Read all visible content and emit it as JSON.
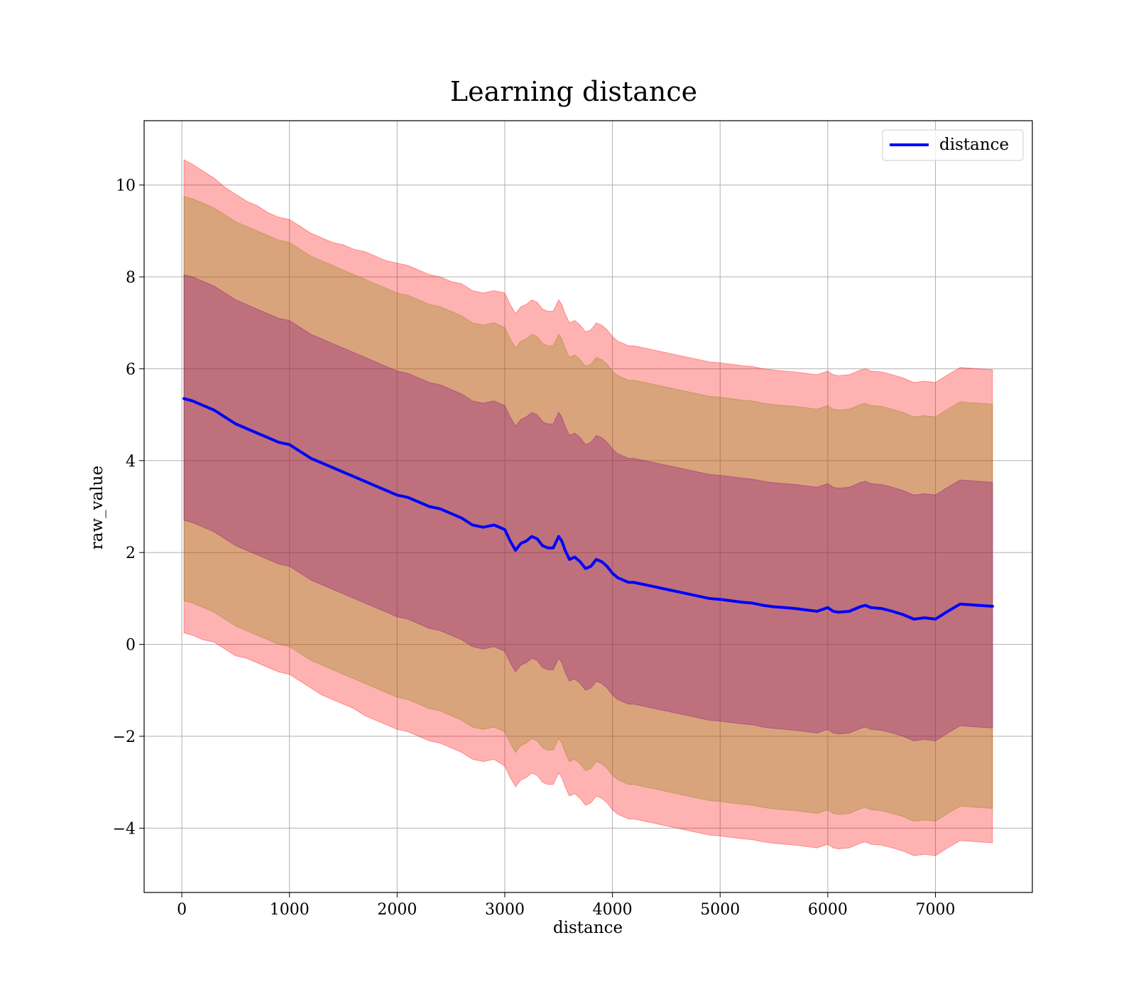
{
  "figure": {
    "background": "#ffffff"
  },
  "chart_data": {
    "type": "line",
    "title": "Learning distance",
    "xlabel": "distance",
    "ylabel": "raw_value",
    "xlim": [
      -350,
      7900
    ],
    "ylim": [
      -5.4,
      11.4
    ],
    "x_ticks": [
      0,
      1000,
      2000,
      3000,
      4000,
      5000,
      6000,
      7000
    ],
    "x_tick_labels": [
      "0",
      "1000",
      "2000",
      "3000",
      "4000",
      "5000",
      "6000",
      "7000"
    ],
    "y_ticks": [
      -4,
      -2,
      0,
      2,
      4,
      6,
      8,
      10
    ],
    "y_tick_labels": [
      "−4",
      "−2",
      "0",
      "2",
      "4",
      "6",
      "8",
      "10"
    ],
    "grid": true,
    "legend": {
      "position": "top-right",
      "entries": [
        "distance"
      ]
    },
    "series": [
      {
        "name": "distance",
        "color": "#0000ff",
        "x": [
          20,
          100,
          200,
          300,
          400,
          500,
          600,
          700,
          800,
          900,
          1000,
          1100,
          1200,
          1300,
          1400,
          1500,
          1600,
          1700,
          1800,
          1900,
          2000,
          2100,
          2200,
          2300,
          2400,
          2500,
          2600,
          2700,
          2800,
          2900,
          3000,
          3050,
          3100,
          3150,
          3200,
          3250,
          3300,
          3350,
          3400,
          3450,
          3500,
          3530,
          3560,
          3600,
          3650,
          3700,
          3750,
          3800,
          3850,
          3900,
          3950,
          4000,
          4050,
          4100,
          4150,
          4200,
          4300,
          4400,
          4500,
          4600,
          4700,
          4800,
          4900,
          5000,
          5100,
          5200,
          5300,
          5400,
          5500,
          5600,
          5700,
          5800,
          5900,
          6000,
          6050,
          6100,
          6200,
          6300,
          6350,
          6400,
          6500,
          6600,
          6700,
          6800,
          6900,
          7000,
          7100,
          7230,
          7400,
          7530
        ],
        "y": [
          5.35,
          5.3,
          5.2,
          5.1,
          4.95,
          4.8,
          4.7,
          4.6,
          4.5,
          4.4,
          4.35,
          4.2,
          4.05,
          3.95,
          3.85,
          3.75,
          3.65,
          3.55,
          3.45,
          3.35,
          3.25,
          3.2,
          3.1,
          3.0,
          2.95,
          2.85,
          2.75,
          2.6,
          2.55,
          2.6,
          2.5,
          2.25,
          2.05,
          2.2,
          2.25,
          2.35,
          2.3,
          2.15,
          2.1,
          2.1,
          2.35,
          2.25,
          2.05,
          1.85,
          1.9,
          1.8,
          1.65,
          1.7,
          1.85,
          1.8,
          1.7,
          1.55,
          1.45,
          1.4,
          1.35,
          1.35,
          1.3,
          1.25,
          1.2,
          1.15,
          1.1,
          1.05,
          1.0,
          0.98,
          0.95,
          0.92,
          0.9,
          0.85,
          0.82,
          0.8,
          0.78,
          0.75,
          0.72,
          0.8,
          0.72,
          0.7,
          0.72,
          0.82,
          0.85,
          0.8,
          0.78,
          0.72,
          0.65,
          0.55,
          0.58,
          0.55,
          0.7,
          0.88,
          0.85,
          0.83
        ]
      }
    ],
    "bands": [
      {
        "sigma": 3,
        "color": "#ff0000",
        "opacity": 0.3,
        "upper_offset": [
          5.2,
          5.15,
          5.1,
          5.05,
          5.0,
          5.0,
          4.95,
          4.95,
          4.9,
          4.9,
          4.9,
          4.9,
          4.9,
          4.9,
          4.9,
          4.95,
          4.95,
          5.0,
          5.0,
          5.0,
          5.05,
          5.05,
          5.05,
          5.05,
          5.05,
          5.05,
          5.1,
          5.1,
          5.1,
          5.1,
          5.15,
          5.15,
          5.15,
          5.15,
          5.15,
          5.15,
          5.15,
          5.15,
          5.15,
          5.15,
          5.15,
          5.15,
          5.15,
          5.15,
          5.15,
          5.15,
          5.15,
          5.15,
          5.15,
          5.15,
          5.15,
          5.15,
          5.15,
          5.15,
          5.15,
          5.15,
          5.15,
          5.15,
          5.15,
          5.15,
          5.15,
          5.15,
          5.15,
          5.15,
          5.15,
          5.15,
          5.15,
          5.15,
          5.15,
          5.15,
          5.15,
          5.15,
          5.15,
          5.15,
          5.15,
          5.15,
          5.15,
          5.15,
          5.15,
          5.15,
          5.15,
          5.15,
          5.15,
          5.15,
          5.15,
          5.15,
          5.15,
          5.15,
          5.15,
          5.15
        ],
        "lower_offset": [
          5.1,
          5.1,
          5.1,
          5.05,
          5.05,
          5.05,
          5.0,
          5.0,
          5.0,
          5.0,
          5.0,
          5.0,
          5.0,
          5.05,
          5.05,
          5.05,
          5.05,
          5.1,
          5.1,
          5.1,
          5.1,
          5.1,
          5.1,
          5.1,
          5.1,
          5.1,
          5.1,
          5.1,
          5.1,
          5.1,
          5.15,
          5.15,
          5.15,
          5.15,
          5.15,
          5.15,
          5.15,
          5.15,
          5.15,
          5.15,
          5.15,
          5.15,
          5.15,
          5.15,
          5.15,
          5.15,
          5.15,
          5.15,
          5.15,
          5.15,
          5.15,
          5.15,
          5.15,
          5.15,
          5.15,
          5.15,
          5.15,
          5.15,
          5.15,
          5.15,
          5.15,
          5.15,
          5.15,
          5.15,
          5.15,
          5.15,
          5.15,
          5.15,
          5.15,
          5.15,
          5.15,
          5.15,
          5.15,
          5.15,
          5.15,
          5.15,
          5.15,
          5.15,
          5.15,
          5.15,
          5.15,
          5.15,
          5.15,
          5.15,
          5.15,
          5.15,
          5.15,
          5.15,
          5.15,
          5.15
        ]
      },
      {
        "sigma": 2,
        "color": "#808000",
        "opacity": 0.3,
        "upper_offset": 4.4,
        "lower_offset": 4.4
      },
      {
        "sigma": 1,
        "color": "#800080",
        "opacity": 0.3,
        "upper_offset": 2.7,
        "lower_offset": 2.65
      }
    ]
  }
}
